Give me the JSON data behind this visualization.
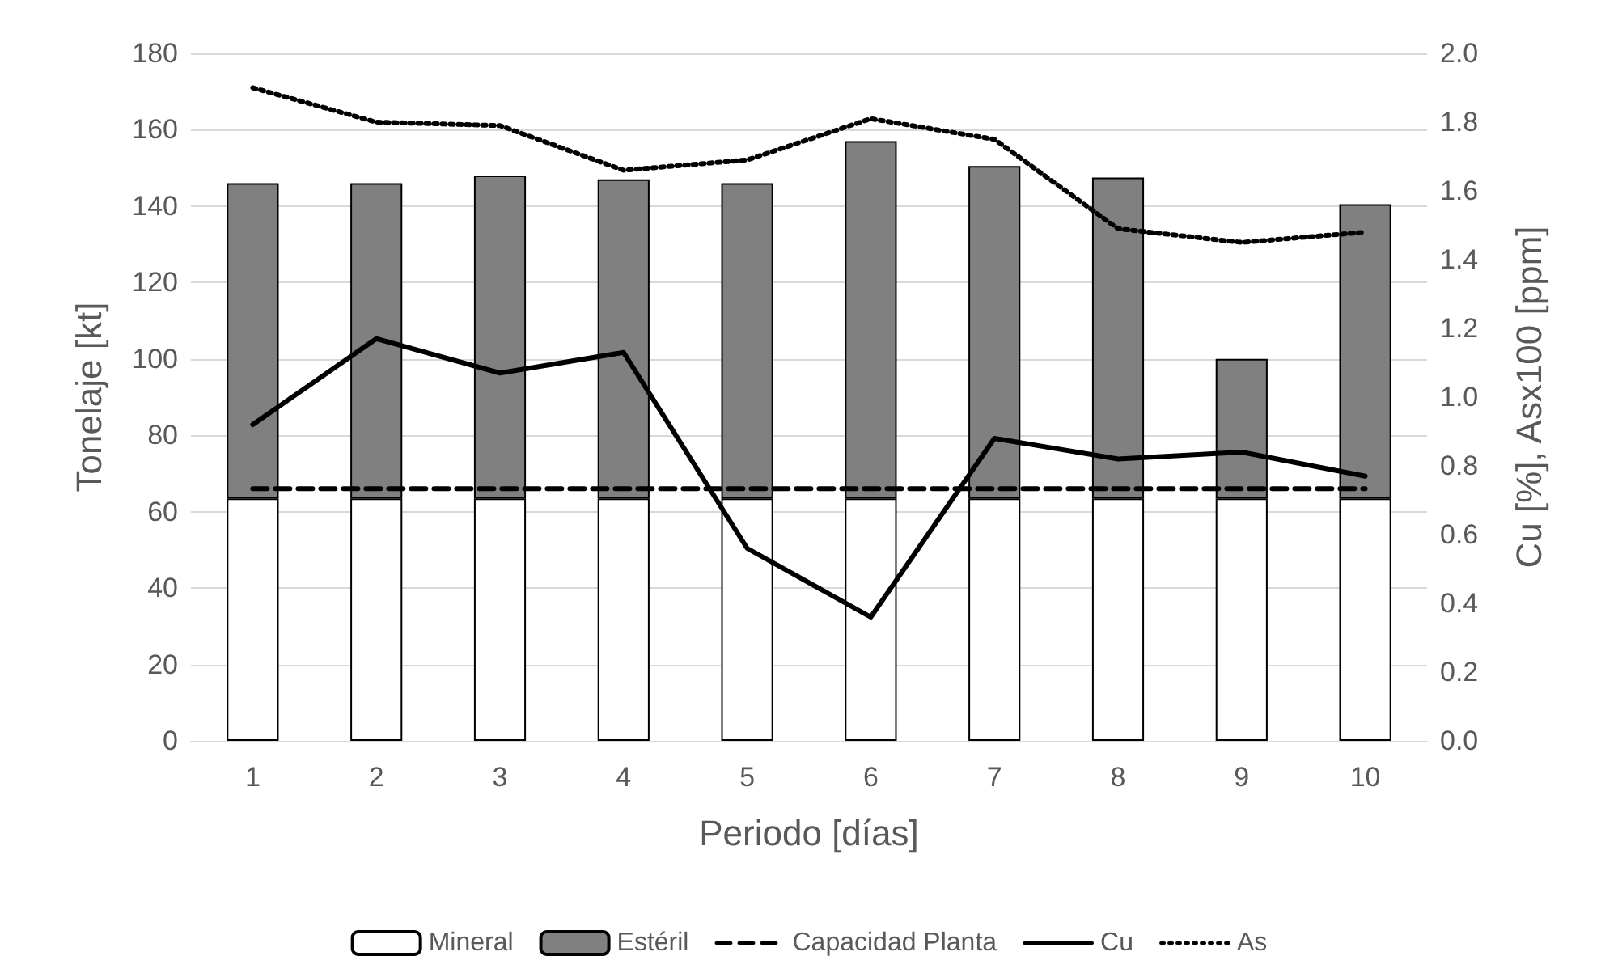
{
  "chart_data": {
    "type": "bar",
    "xlabel": "Periodo [días]",
    "ylabel": "Tonelaje [kt]",
    "y2label": "Cu [%], Asx100 [ppm]",
    "categories": [
      "1",
      "2",
      "3",
      "4",
      "5",
      "6",
      "7",
      "8",
      "9",
      "10"
    ],
    "stacked": true,
    "series": [
      {
        "name": "Mineral",
        "color": "#ffffff",
        "values": [
          63.5,
          63.5,
          63.5,
          63.5,
          63.5,
          63.5,
          63.5,
          63.5,
          63.5,
          63.5
        ]
      },
      {
        "name": "Estéril",
        "color": "#808080",
        "values": [
          82.5,
          82.5,
          84.5,
          83.5,
          82.5,
          93.5,
          87,
          84,
          36.5,
          77
        ]
      },
      {
        "name": "Capacidad Planta",
        "type": "line",
        "color": "#000000",
        "line_style": "dashed",
        "values": [
          66,
          66,
          66,
          66,
          66,
          66,
          66,
          66,
          66,
          66
        ]
      },
      {
        "name": "Cu",
        "type": "line",
        "axis": "y2",
        "color": "#000000",
        "line_style": "solid",
        "values": [
          0.92,
          1.17,
          1.07,
          1.13,
          0.56,
          0.36,
          0.88,
          0.82,
          0.84,
          0.77
        ]
      },
      {
        "name": "As",
        "type": "line",
        "axis": "y2",
        "color": "#000000",
        "line_style": "dotted",
        "values": [
          1.9,
          1.8,
          1.79,
          1.66,
          1.69,
          1.81,
          1.75,
          1.49,
          1.45,
          1.48
        ]
      }
    ],
    "ylim": [
      0,
      180
    ],
    "yticks": [
      0,
      20,
      40,
      60,
      80,
      100,
      120,
      140,
      160,
      180
    ],
    "y2lim": [
      0,
      2
    ],
    "y2ticks": [
      {
        "value": 0,
        "label": "0.0"
      },
      {
        "value": 0.2,
        "label": "0.2"
      },
      {
        "value": 0.4,
        "label": "0.4"
      },
      {
        "value": 0.6,
        "label": "0.6"
      },
      {
        "value": 0.8,
        "label": "0.8"
      },
      {
        "value": 1,
        "label": "1.0"
      },
      {
        "value": 1.2,
        "label": "1.2"
      },
      {
        "value": 1.4,
        "label": "1.4"
      },
      {
        "value": 1.6,
        "label": "1.6"
      },
      {
        "value": 1.8,
        "label": "1.8"
      },
      {
        "value": 2,
        "label": "2.0"
      }
    ],
    "grid": "y",
    "legend": "bottom",
    "marker": "none"
  }
}
